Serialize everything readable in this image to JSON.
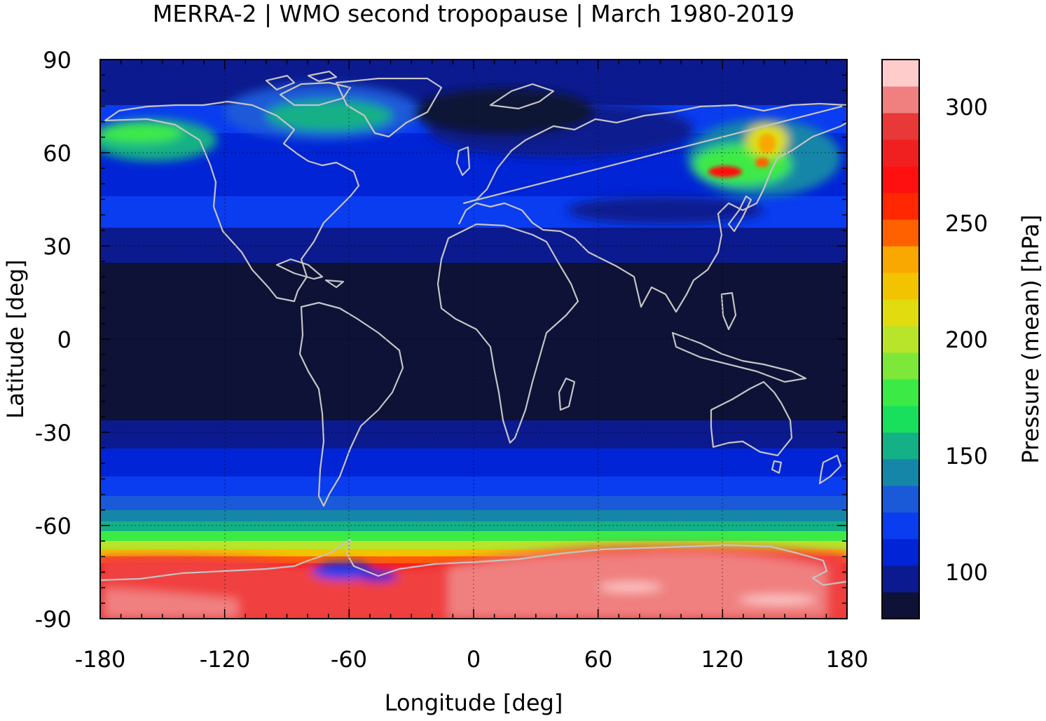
{
  "chart_data": {
    "type": "heatmap",
    "title": "MERRA-2 | WMO second tropopause | March 1980-2019",
    "xlabel": "Longitude [deg]",
    "ylabel": "Latitude [deg]",
    "xlim": [
      -180,
      180
    ],
    "ylim": [
      -90,
      90
    ],
    "xticks": [
      "-180",
      "-120",
      "-60",
      "0",
      "60",
      "120",
      "180"
    ],
    "yticks": [
      "90",
      "60",
      "30",
      "0",
      "-30",
      "-60",
      "-90"
    ],
    "colorbar": {
      "label": "Pressure (mean) [hPa]",
      "range": [
        80,
        320
      ],
      "ticks": [
        "300",
        "250",
        "200",
        "150",
        "100"
      ],
      "colors": [
        "#0d1236",
        "#0c1a8f",
        "#0024d6",
        "#0a3cf0",
        "#1a5ad8",
        "#1586a8",
        "#14b086",
        "#18e05c",
        "#3cea46",
        "#7de83a",
        "#b8e42a",
        "#e0dc10",
        "#f2c400",
        "#f8a800",
        "#ff6000",
        "#ff2800",
        "#ff1010",
        "#f02020",
        "#e83838",
        "#f08080",
        "#ffcccc"
      ]
    },
    "field_summary": [
      {
        "lat": [
          -90,
          -75
        ],
        "mean_hPa": 300
      },
      {
        "lat": [
          -75,
          -65
        ],
        "mean_hPa": 190
      },
      {
        "lat": [
          -65,
          -50
        ],
        "mean_hPa": 130
      },
      {
        "lat": [
          -50,
          -30
        ],
        "mean_hPa": 100
      },
      {
        "lat": [
          -30,
          25
        ],
        "mean_hPa": 85
      },
      {
        "lat": [
          25,
          60
        ],
        "mean_hPa": 105
      },
      {
        "lat": [
          60,
          90
        ],
        "mean_hPa": 115
      }
    ],
    "grid": true,
    "overlay": "coastlines"
  }
}
